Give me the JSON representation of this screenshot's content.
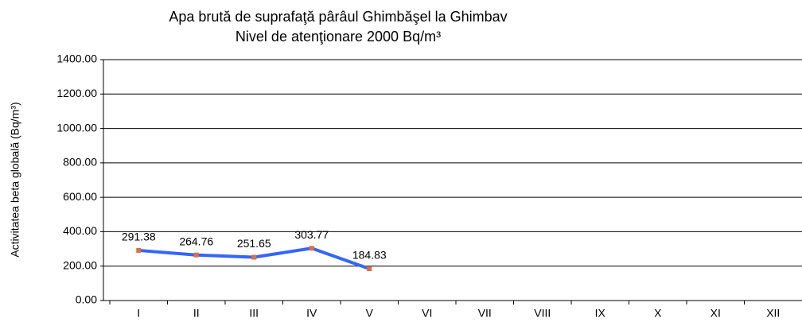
{
  "chart_data": {
    "type": "line",
    "title": [
      "Apa brută de suprafaţă pârâul Ghimbăşel la Ghimbav",
      "Nivel de atenţionare 2000 Bq/m³"
    ],
    "y_label": "Activitatea  beta globală (Bq/m³)",
    "categories": [
      "I",
      "II",
      "III",
      "IV",
      "V",
      "VI",
      "VII",
      "VIII",
      "IX",
      "X",
      "XI",
      "XII"
    ],
    "series": [
      {
        "name": "Activitatea beta globală",
        "color": "#3366ff",
        "marker_color": "#e0703a",
        "values": [
          291.38,
          264.76,
          251.65,
          303.77,
          184.83,
          null,
          null,
          null,
          null,
          null,
          null,
          null
        ]
      }
    ],
    "ylim": [
      0,
      1400
    ],
    "yticks": [
      {
        "value": 0,
        "label": "0.00"
      },
      {
        "value": 200,
        "label": "200.00"
      },
      {
        "value": 400,
        "label": "400.00"
      },
      {
        "value": 600,
        "label": "600.00"
      },
      {
        "value": 800,
        "label": "800.00"
      },
      {
        "value": 1000,
        "label": "1000.00"
      },
      {
        "value": 1200,
        "label": "1200.00"
      },
      {
        "value": 1400,
        "label": "1400.00"
      }
    ],
    "grid": true
  }
}
